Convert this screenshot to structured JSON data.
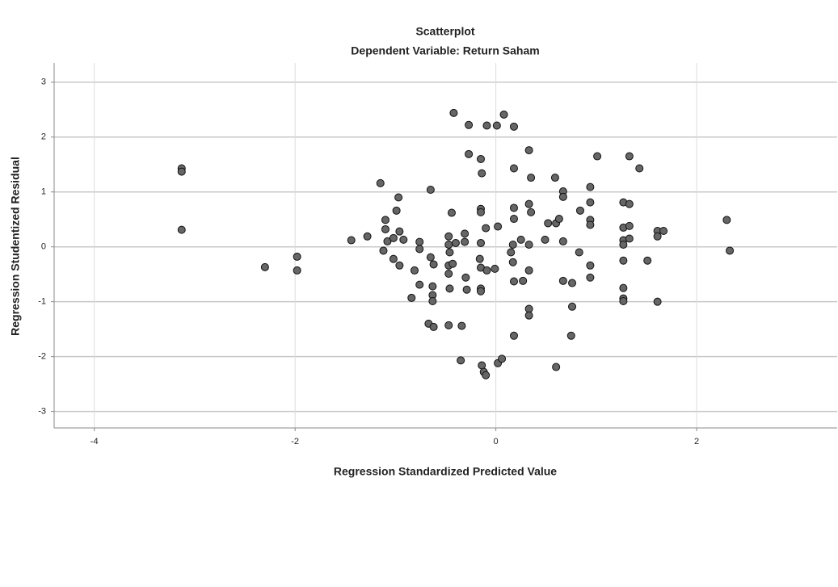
{
  "chart_data": {
    "type": "scatter",
    "title": "Scatterplot",
    "subtitle": "Dependent Variable: Return Saham",
    "x_label": "Regression Standardized Predicted Value",
    "y_label": "Regression Studentized Residual",
    "xlim": [
      -4.4,
      3.4
    ],
    "ylim": [
      -3.3,
      3.35
    ],
    "xticks": [
      -4,
      -2,
      0,
      2
    ],
    "yticks": [
      -3,
      -2,
      -1,
      0,
      1,
      2,
      3
    ],
    "grid": true,
    "color": "#666666",
    "x": [
      -3.13,
      -3.13,
      -3.13,
      -2.3,
      -1.98,
      -1.98,
      -1.44,
      -1.28,
      -1.15,
      -1.1,
      -1.1,
      -1.08,
      -1.12,
      -0.99,
      -0.97,
      -1.02,
      -0.96,
      -1.02,
      -0.96,
      -0.92,
      -0.81,
      -0.84,
      -0.76,
      -0.76,
      -0.76,
      -0.65,
      -0.65,
      -0.62,
      -0.63,
      -0.63,
      -0.63,
      -0.67,
      -0.62,
      -0.47,
      -0.47,
      -0.46,
      -0.44,
      -0.47,
      -0.47,
      -0.46,
      -0.47,
      -0.4,
      -0.43,
      -0.34,
      -0.35,
      -0.31,
      -0.31,
      -0.3,
      -0.29,
      -0.42,
      -0.27,
      -0.27,
      -0.15,
      -0.14,
      -0.15,
      -0.15,
      -0.15,
      -0.16,
      -0.15,
      -0.15,
      -0.15,
      -0.09,
      0.01,
      0.08,
      0.18,
      -0.1,
      -0.09,
      -0.01,
      0.02,
      -0.14,
      -0.12,
      -0.1,
      0.02,
      0.06,
      0.15,
      0.17,
      0.17,
      0.18,
      0.18,
      0.18,
      0.18,
      0.18,
      0.25,
      0.27,
      0.33,
      0.35,
      0.33,
      0.35,
      0.33,
      0.33,
      0.33,
      0.33,
      0.49,
      0.52,
      0.6,
      0.63,
      0.59,
      0.67,
      0.67,
      0.67,
      0.67,
      0.76,
      0.76,
      0.75,
      0.6,
      0.83,
      0.84,
      0.94,
      0.94,
      0.94,
      0.94,
      0.94,
      0.94,
      1.01,
      1.27,
      1.33,
      1.27,
      1.33,
      1.27,
      1.33,
      1.27,
      1.27,
      1.27,
      1.27,
      1.27,
      1.33,
      1.43,
      1.51,
      1.61,
      1.61,
      1.67,
      1.61,
      2.3,
      2.33
    ],
    "values": [
      1.43,
      1.37,
      0.31,
      -0.37,
      -0.18,
      -0.43,
      0.12,
      0.19,
      1.16,
      0.49,
      0.32,
      0.1,
      -0.07,
      0.66,
      0.9,
      0.16,
      0.28,
      -0.22,
      -0.34,
      0.13,
      -0.43,
      -0.93,
      0.09,
      -0.04,
      -0.69,
      1.04,
      -0.19,
      -0.32,
      -0.72,
      -0.88,
      -0.99,
      -1.4,
      -1.46,
      0.19,
      0.04,
      -0.1,
      0.62,
      -0.34,
      -0.49,
      -0.76,
      -1.43,
      0.07,
      -0.31,
      -1.44,
      -2.07,
      0.24,
      0.09,
      -0.56,
      -0.78,
      2.44,
      2.22,
      1.69,
      1.6,
      1.34,
      0.69,
      0.63,
      0.07,
      -0.22,
      -0.38,
      -0.76,
      -0.81,
      2.21,
      2.21,
      2.41,
      2.19,
      0.34,
      -0.43,
      -0.4,
      0.37,
      -2.16,
      -2.28,
      -2.34,
      -2.12,
      -2.04,
      -0.1,
      0.04,
      -0.28,
      0.71,
      0.51,
      1.43,
      -0.63,
      -1.62,
      0.13,
      -0.62,
      1.76,
      1.26,
      0.78,
      0.63,
      0.04,
      -0.43,
      -1.13,
      -1.25,
      0.13,
      0.43,
      0.43,
      0.51,
      1.26,
      1.01,
      0.91,
      0.1,
      -0.62,
      -0.66,
      -1.09,
      -1.62,
      -2.19,
      -0.1,
      0.66,
      1.09,
      0.81,
      0.49,
      0.4,
      -0.34,
      -0.56,
      1.65,
      0.81,
      0.78,
      0.35,
      0.38,
      0.12,
      0.15,
      0.04,
      -0.25,
      -0.75,
      -0.94,
      -0.99,
      1.65,
      1.43,
      -0.25,
      0.29,
      0.19,
      0.29,
      -1.0,
      0.49,
      -0.07
    ]
  }
}
